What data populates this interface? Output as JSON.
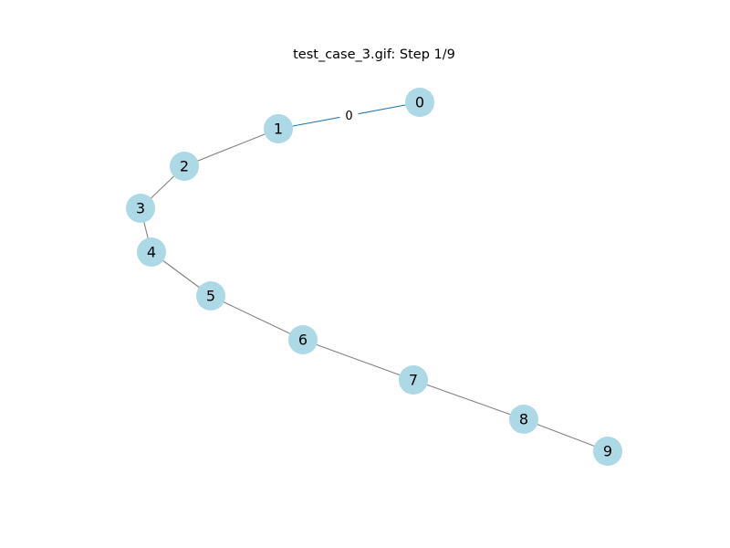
{
  "title": "test_case_3.gif: Step 1/9",
  "colors": {
    "node_fill": "#add8e6",
    "edge_default": "#808080",
    "edge_active": "#1f77b4",
    "background": "#ffffff"
  },
  "graph": {
    "nodes": [
      {
        "id": "0",
        "label": "0"
      },
      {
        "id": "1",
        "label": "1"
      },
      {
        "id": "2",
        "label": "2"
      },
      {
        "id": "3",
        "label": "3"
      },
      {
        "id": "4",
        "label": "4"
      },
      {
        "id": "5",
        "label": "5"
      },
      {
        "id": "6",
        "label": "6"
      },
      {
        "id": "7",
        "label": "7"
      },
      {
        "id": "8",
        "label": "8"
      },
      {
        "id": "9",
        "label": "9"
      }
    ],
    "edges": [
      {
        "source": "1",
        "target": "0",
        "label": "0",
        "active": true
      },
      {
        "source": "1",
        "target": "2",
        "label": "",
        "active": false
      },
      {
        "source": "2",
        "target": "3",
        "label": "",
        "active": false
      },
      {
        "source": "3",
        "target": "4",
        "label": "",
        "active": false
      },
      {
        "source": "4",
        "target": "5",
        "label": "",
        "active": false
      },
      {
        "source": "5",
        "target": "6",
        "label": "",
        "active": false
      },
      {
        "source": "6",
        "target": "7",
        "label": "",
        "active": false
      },
      {
        "source": "7",
        "target": "8",
        "label": "",
        "active": false
      },
      {
        "source": "8",
        "target": "9",
        "label": "",
        "active": false
      }
    ]
  }
}
